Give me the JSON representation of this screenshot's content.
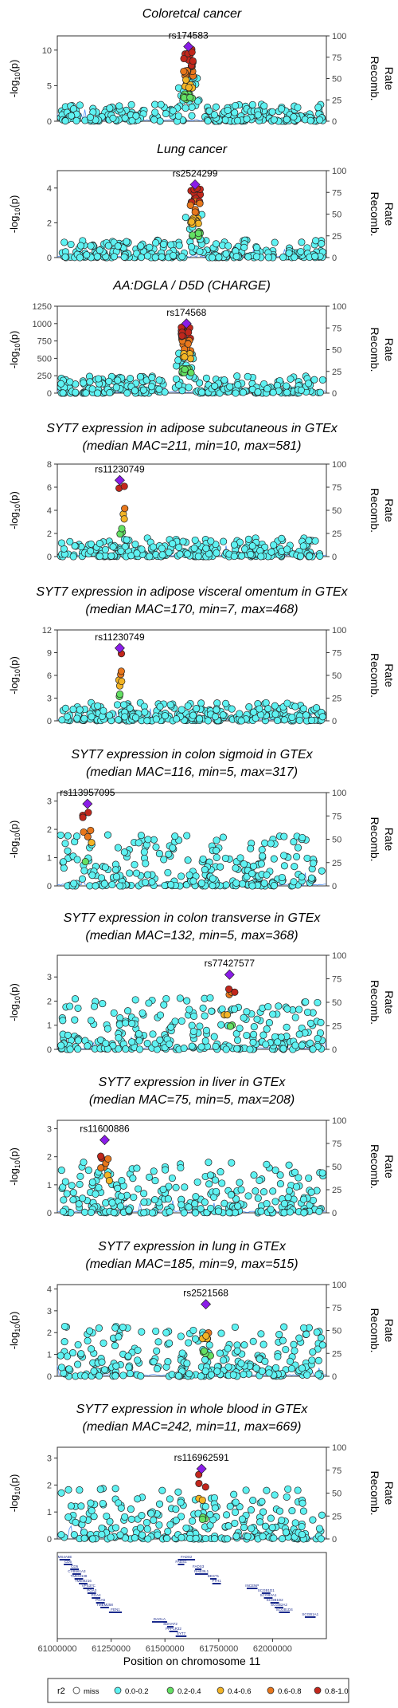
{
  "figure": {
    "x_axis_title": "Position on chromosome 11",
    "y_axis_title_left": "-log10(p)",
    "y_axis_title_right": [
      "Recomb.",
      "Rate"
    ]
  },
  "legend": {
    "title": "r2",
    "items": [
      {
        "label": "miss",
        "color": "#ffffff"
      },
      {
        "label": "0.0-0.2",
        "color": "#5ef2f2"
      },
      {
        "label": "0.2-0.4",
        "color": "#63e063"
      },
      {
        "label": "0.4-0.6",
        "color": "#f2b426"
      },
      {
        "label": "0.6-0.8",
        "color": "#e8771c"
      },
      {
        "label": "0.8-1.0",
        "color": "#c1271c"
      }
    ]
  },
  "chart_data": [
    {
      "type": "scatter",
      "title": [
        "Coloretcal cancer"
      ],
      "ylim": [
        0,
        12
      ],
      "yticks": [
        0,
        5,
        10
      ],
      "rticks": [
        0,
        25,
        50,
        75,
        100
      ],
      "lead_snp": "rs174583",
      "lead_x": 61609000,
      "lead_y": 10.5,
      "xlim": [
        61000000,
        62250000
      ]
    },
    {
      "type": "scatter",
      "title": [
        "Lung cancer"
      ],
      "ylim": [
        0,
        5
      ],
      "yticks": [
        0,
        2,
        4
      ],
      "rticks": [
        0,
        25,
        50,
        75,
        100
      ],
      "lead_snp": "rs2524299",
      "lead_x": 61640000,
      "lead_y": 4.2,
      "xlim": [
        61000000,
        62250000
      ]
    },
    {
      "type": "scatter",
      "title": [
        "AA:DGLA / D5D (CHARGE)"
      ],
      "ylim": [
        0,
        1250
      ],
      "yticks": [
        0,
        250,
        500,
        750,
        1000,
        1250
      ],
      "rticks": [
        0,
        25,
        50,
        75,
        100
      ],
      "lead_snp": "rs174568",
      "lead_x": 61600000,
      "lead_y": 1000,
      "xlim": [
        61000000,
        62250000
      ]
    },
    {
      "type": "scatter",
      "title": [
        "SYT7 expression in adipose subcutaneous in GTEx",
        "(median MAC=211, min=10, max=581)"
      ],
      "ylim": [
        0,
        8
      ],
      "yticks": [
        0,
        2,
        4,
        6,
        8
      ],
      "rticks": [
        0,
        25,
        50,
        75,
        100
      ],
      "lead_snp": "rs11230749",
      "lead_x": 61290000,
      "lead_y": 6.6,
      "xlim": [
        61000000,
        62250000
      ]
    },
    {
      "type": "scatter",
      "title": [
        "SYT7 expression in adipose visceral omentum in GTEx",
        "(median MAC=170, min=7, max=468)"
      ],
      "ylim": [
        0,
        12
      ],
      "yticks": [
        0,
        3,
        6,
        9,
        12
      ],
      "rticks": [
        0,
        25,
        50,
        75,
        100
      ],
      "lead_snp": "rs11230749",
      "lead_x": 61290000,
      "lead_y": 9.6,
      "xlim": [
        61000000,
        62250000
      ]
    },
    {
      "type": "scatter",
      "title": [
        "SYT7 expression in colon sigmoid in GTEx",
        "(median MAC=116, min=5, max=317)"
      ],
      "ylim": [
        0,
        3.3
      ],
      "yticks": [
        0,
        1,
        2,
        3
      ],
      "rticks": [
        0,
        25,
        50,
        75,
        100
      ],
      "lead_snp": "rs113957095",
      "lead_x": 61140000,
      "lead_y": 2.9,
      "xlim": [
        61000000,
        62250000
      ]
    },
    {
      "type": "scatter",
      "title": [
        "SYT7 expression in colon transverse in GTEx",
        "(median MAC=132, min=5, max=368)"
      ],
      "ylim": [
        0,
        3.9
      ],
      "yticks": [
        0,
        1,
        2,
        3
      ],
      "rticks": [
        0,
        25,
        50,
        75,
        100
      ],
      "lead_snp": "rs77427577",
      "lead_x": 61800000,
      "lead_y": 3.1,
      "xlim": [
        61000000,
        62250000
      ]
    },
    {
      "type": "scatter",
      "title": [
        "SYT7 expression in liver in GTEx",
        "(median MAC=75, min=5, max=208)"
      ],
      "ylim": [
        0,
        3.3
      ],
      "yticks": [
        0,
        1,
        2,
        3
      ],
      "rticks": [
        0,
        25,
        50,
        75,
        100
      ],
      "lead_snp": "rs11600886",
      "lead_x": 61220000,
      "lead_y": 2.6,
      "xlim": [
        61000000,
        62250000
      ]
    },
    {
      "type": "scatter",
      "title": [
        "SYT7 expression in lung in GTEx",
        "(median MAC=185, min=9, max=515)"
      ],
      "ylim": [
        0,
        4.2
      ],
      "yticks": [
        0,
        1,
        2,
        3,
        4
      ],
      "rticks": [
        0,
        25,
        50,
        75,
        100
      ],
      "lead_snp": "rs2521568",
      "lead_x": 61690000,
      "lead_y": 3.3,
      "xlim": [
        61000000,
        62250000
      ]
    },
    {
      "type": "scatter",
      "title": [
        "SYT7 expression in whole blood in GTEx",
        "(median MAC=242, min=11, max=669)"
      ],
      "ylim": [
        0,
        3.4
      ],
      "yticks": [
        0,
        1,
        2,
        3
      ],
      "rticks": [
        0,
        25,
        50,
        75,
        100
      ],
      "lead_snp": "rs116962591",
      "lead_x": 61670000,
      "lead_y": 2.6,
      "xlim": [
        61000000,
        62250000
      ]
    }
  ],
  "gene_track": {
    "xticks": [
      "61000000",
      "61250000",
      "61500000",
      "61750000",
      "62000000"
    ],
    "xtick_values": [
      61000000,
      61250000,
      61500000,
      61750000,
      62000000
    ],
    "xlim": [
      61000000,
      62250000
    ],
    "genes": [
      {
        "name": "MS4A6E",
        "start": 61010000,
        "end": 61060000,
        "row": 0
      },
      {
        "name": "CD6",
        "start": 61030000,
        "end": 61070000,
        "row": 1
      },
      {
        "name": "CD5",
        "start": 61060000,
        "end": 61100000,
        "row": 2
      },
      {
        "name": "CYB561A3",
        "start": 61070000,
        "end": 61110000,
        "row": 3
      },
      {
        "name": "TMEM138",
        "start": 61080000,
        "end": 61120000,
        "row": 4
      },
      {
        "name": "TMEM216",
        "start": 61100000,
        "end": 61140000,
        "row": 5
      },
      {
        "name": "VPS37C",
        "start": 61120000,
        "end": 61170000,
        "row": 6
      },
      {
        "name": "PGA3",
        "start": 61140000,
        "end": 61180000,
        "row": 7
      },
      {
        "name": "PGA4",
        "start": 61160000,
        "end": 61200000,
        "row": 8
      },
      {
        "name": "PGA5",
        "start": 61180000,
        "end": 61220000,
        "row": 9
      },
      {
        "name": "TMEM258",
        "start": 61200000,
        "end": 61240000,
        "row": 10
      },
      {
        "name": "FEN1",
        "start": 61240000,
        "end": 61300000,
        "row": 11
      },
      {
        "name": "FADS2",
        "start": 61560000,
        "end": 61640000,
        "row": 0
      },
      {
        "name": "FADS1",
        "start": 61560000,
        "end": 61590000,
        "row": 1
      },
      {
        "name": "FADS3",
        "start": 61640000,
        "end": 61670000,
        "row": 2
      },
      {
        "name": "RAB3IL1",
        "start": 61640000,
        "end": 61700000,
        "row": 3
      },
      {
        "name": "BEST1",
        "start": 61710000,
        "end": 61740000,
        "row": 4
      },
      {
        "name": "FTH1",
        "start": 61720000,
        "end": 61760000,
        "row": 5
      },
      {
        "name": "INCENP",
        "start": 61880000,
        "end": 61930000,
        "row": 6
      },
      {
        "name": "SCGB1D1",
        "start": 61950000,
        "end": 61990000,
        "row": 7
      },
      {
        "name": "SCGB2A1",
        "start": 61960000,
        "end": 62000000,
        "row": 8
      },
      {
        "name": "SCGB1D2",
        "start": 61990000,
        "end": 62030000,
        "row": 9
      },
      {
        "name": "SCGB2A2",
        "start": 62010000,
        "end": 62050000,
        "row": 10
      },
      {
        "name": "SCGB1D4",
        "start": 62030000,
        "end": 62080000,
        "row": 11
      },
      {
        "name": "SCGB1A1",
        "start": 62150000,
        "end": 62200000,
        "row": 12
      },
      {
        "name": "DAGLA",
        "start": 61440000,
        "end": 61510000,
        "row": 13
      },
      {
        "name": "SDHAF2",
        "start": 61510000,
        "end": 61540000,
        "row": 14
      },
      {
        "name": "PPP1R32",
        "start": 61520000,
        "end": 61560000,
        "row": 15
      },
      {
        "name": "SYT7",
        "start": 61550000,
        "end": 61600000,
        "row": 16
      }
    ]
  }
}
